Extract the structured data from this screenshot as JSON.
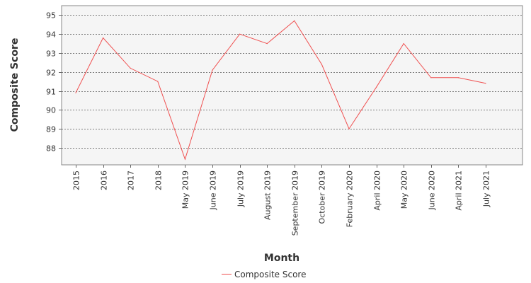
{
  "chart_data": {
    "type": "line",
    "xlabel": "Month",
    "ylabel": "Composite Score",
    "categories": [
      "2015",
      "2016",
      "2017",
      "2018",
      "May 2019",
      "June 2019",
      "July 2019",
      "August 2019",
      "September 2019",
      "October 2019",
      "February 2020",
      "April 2020",
      "May 2020",
      "June 2020",
      "April 2021",
      "July 2021"
    ],
    "series": [
      {
        "name": "Composite Score",
        "color": "#f05050",
        "values": [
          90.9,
          93.8,
          92.2,
          91.5,
          87.4,
          92.1,
          94.0,
          93.5,
          94.7,
          92.4,
          89.0,
          91.2,
          93.5,
          91.7,
          91.7,
          91.4
        ]
      }
    ],
    "ylim": [
      87.1,
      95.5
    ],
    "yticks": [
      88,
      89,
      90,
      91,
      92,
      93,
      94,
      95
    ],
    "grid": true,
    "legend_position": "bottom-center"
  }
}
